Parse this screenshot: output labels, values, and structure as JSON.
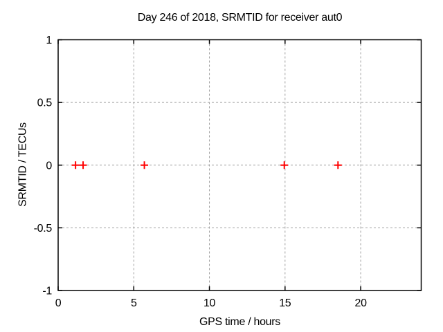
{
  "chart_data": {
    "type": "scatter",
    "title": "Day 246 of 2018, SRMTID for receiver aut0",
    "xlabel": "GPS time / hours",
    "ylabel": "SRMTID / TECUs",
    "xlim": [
      0,
      24
    ],
    "ylim": [
      -1,
      1
    ],
    "xticks": [
      0,
      5,
      10,
      15,
      20
    ],
    "xtick_labels": [
      "0",
      "5",
      "10",
      "15",
      "20"
    ],
    "yticks": [
      -1,
      -0.5,
      0,
      0.5,
      1
    ],
    "ytick_labels": [
      "-1",
      "-0.5",
      "0",
      "0.5",
      "1"
    ],
    "grid": true,
    "grid_style": "dashed",
    "legend": "none",
    "series": [
      {
        "name": "SRMTID",
        "marker": "plus",
        "color": "#ff0000",
        "x": [
          1.15,
          1.65,
          5.7,
          14.95,
          18.5
        ],
        "y": [
          0,
          0,
          0,
          0,
          0
        ]
      }
    ],
    "colors": {
      "background": "#ffffff",
      "frame": "#000000",
      "grid": "#a0a0a0",
      "text": "#000000"
    }
  }
}
